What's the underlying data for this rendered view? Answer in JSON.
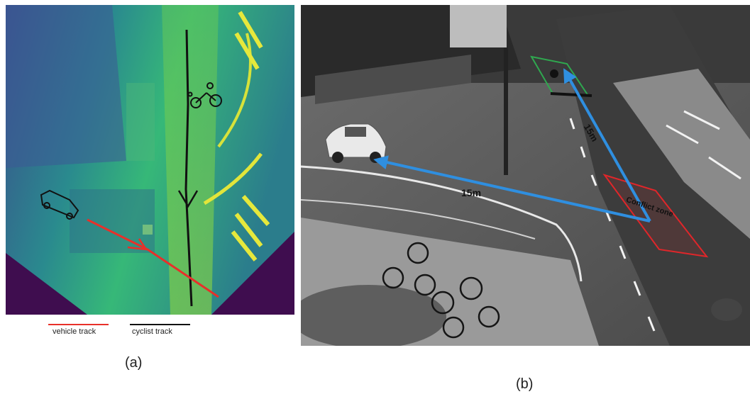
{
  "panel_a": {
    "legend": [
      {
        "label": "vehicle track",
        "color": "#e8302a"
      },
      {
        "label": "cyclist track",
        "color": "#111111"
      }
    ],
    "caption": "(a)",
    "icons": [
      "bicycle-icon",
      "car-icon"
    ]
  },
  "panel_b": {
    "caption": "(b)",
    "labels": {
      "conflict_zone": "Conflict zone",
      "distance_vehicle": "15m",
      "distance_cyclist": "15m"
    },
    "colors": {
      "arrow": "#2f8fe0",
      "conflict_zone": "#e0262a",
      "cyclist_box": "#2fa84f"
    }
  }
}
